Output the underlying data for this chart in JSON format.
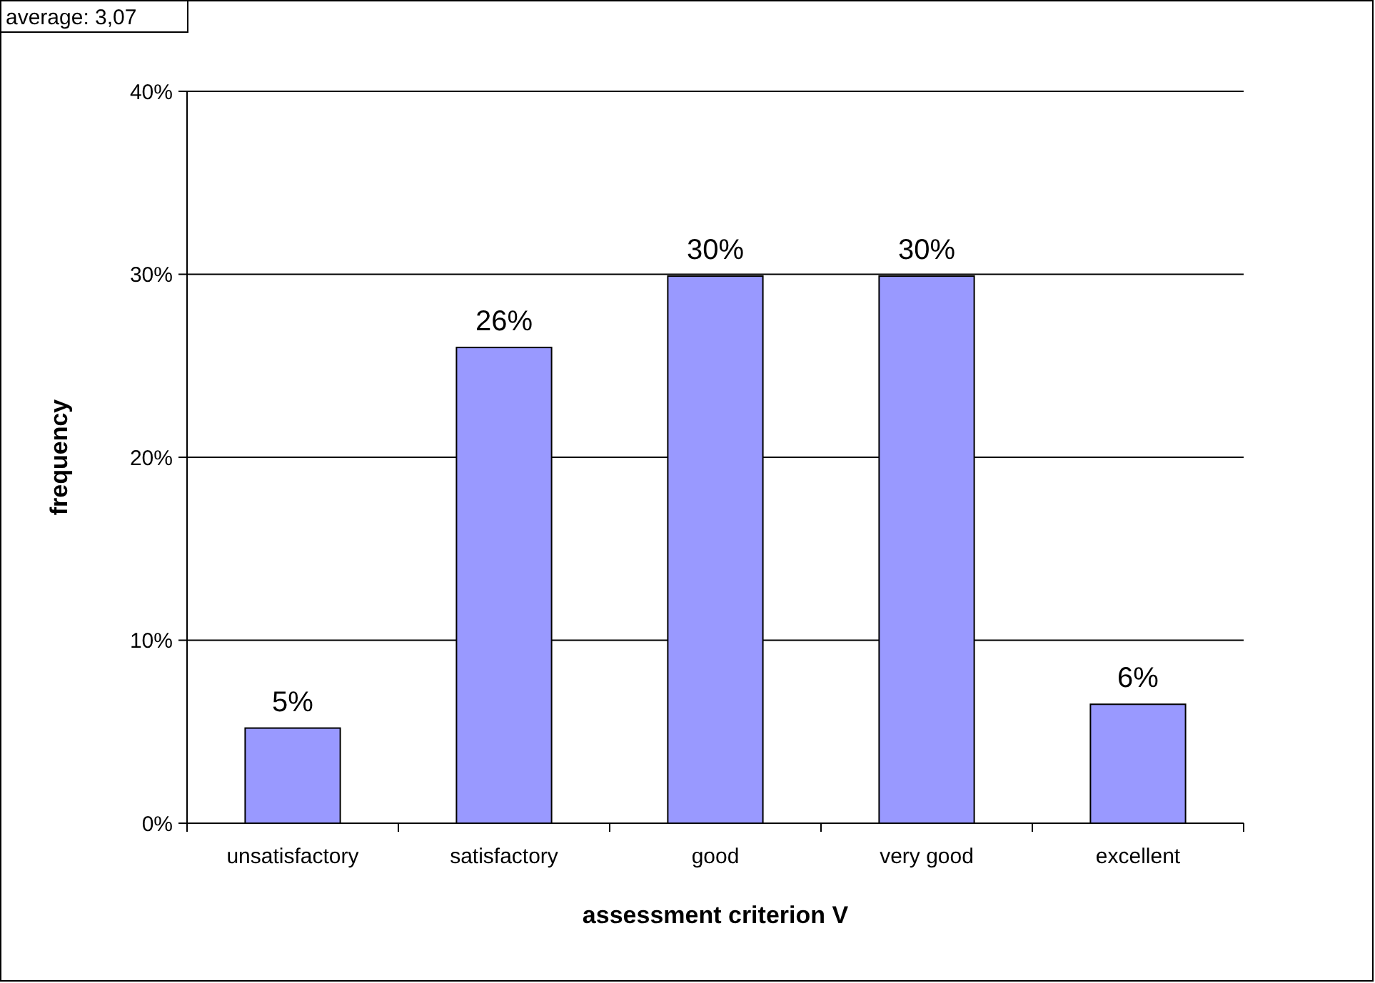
{
  "chart_data": {
    "type": "bar",
    "xlabel": "assessment criterion V",
    "ylabel": "frequency",
    "annotations": [
      "average: 3,07"
    ],
    "categories": [
      "unsatisfactory",
      "satisfactory",
      "good",
      "very good",
      "excellent"
    ],
    "values": [
      5.2,
      26,
      29.9,
      29.9,
      6.5
    ],
    "value_labels": [
      "5%",
      "26%",
      "30%",
      "30%",
      "6%"
    ],
    "color": "#9999ff",
    "ylim": [
      0,
      40
    ],
    "yticks": [
      {
        "value": 0,
        "label": "0%"
      },
      {
        "value": 10,
        "label": "10%"
      },
      {
        "value": 20,
        "label": "20%"
      },
      {
        "value": 30,
        "label": "30%"
      },
      {
        "value": 40,
        "label": "40%"
      }
    ],
    "grid": "y"
  }
}
